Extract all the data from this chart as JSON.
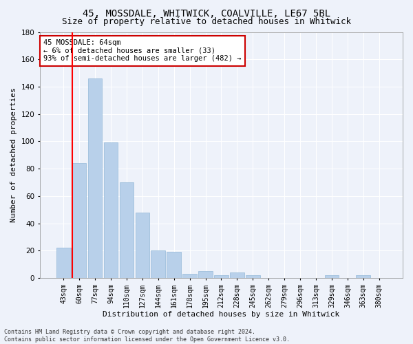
{
  "title": "45, MOSSDALE, WHITWICK, COALVILLE, LE67 5BL",
  "subtitle": "Size of property relative to detached houses in Whitwick",
  "xlabel": "Distribution of detached houses by size in Whitwick",
  "ylabel": "Number of detached properties",
  "categories": [
    "43sqm",
    "60sqm",
    "77sqm",
    "94sqm",
    "110sqm",
    "127sqm",
    "144sqm",
    "161sqm",
    "178sqm",
    "195sqm",
    "212sqm",
    "228sqm",
    "245sqm",
    "262sqm",
    "279sqm",
    "296sqm",
    "313sqm",
    "329sqm",
    "346sqm",
    "363sqm",
    "380sqm"
  ],
  "values": [
    22,
    84,
    146,
    99,
    70,
    48,
    20,
    19,
    3,
    5,
    2,
    4,
    2,
    0,
    0,
    0,
    0,
    2,
    0,
    2,
    0
  ],
  "bar_color": "#b8d0ea",
  "bar_edge_color": "#93b8d8",
  "red_line_index": 1,
  "ylim": [
    0,
    180
  ],
  "yticks": [
    0,
    20,
    40,
    60,
    80,
    100,
    120,
    140,
    160,
    180
  ],
  "annotation_text": "45 MOSSDALE: 64sqm\n← 6% of detached houses are smaller (33)\n93% of semi-detached houses are larger (482) →",
  "annotation_box_facecolor": "#ffffff",
  "annotation_box_edgecolor": "#cc0000",
  "footer_text": "Contains HM Land Registry data © Crown copyright and database right 2024.\nContains public sector information licensed under the Open Government Licence v3.0.",
  "background_color": "#eef2fa",
  "grid_color": "#ffffff",
  "title_fontsize": 10,
  "subtitle_fontsize": 9,
  "tick_fontsize": 7,
  "ylabel_fontsize": 8,
  "xlabel_fontsize": 8,
  "annotation_fontsize": 7.5,
  "footer_fontsize": 6
}
